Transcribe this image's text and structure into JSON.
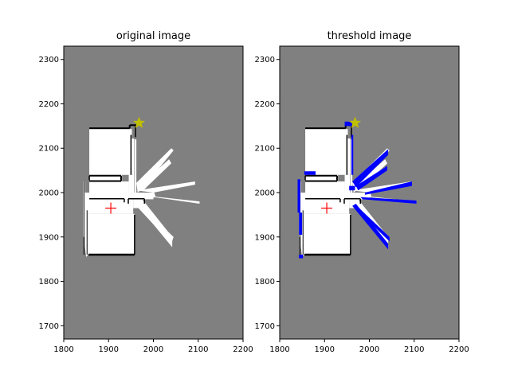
{
  "chart_data": [
    {
      "type": "heatmap",
      "title": "original image",
      "xlim": [
        1800,
        2200
      ],
      "ylim": [
        1670,
        2330
      ],
      "x_ticks": [
        1800,
        1900,
        2000,
        2100,
        2200
      ],
      "y_ticks": [
        1700,
        1800,
        1900,
        2000,
        2100,
        2200,
        2300
      ],
      "grid": false,
      "background_color": "#808080",
      "free_color": "#ffffff",
      "obstacle_color": "#000000",
      "markers": [
        {
          "kind": "star",
          "x": 1968,
          "y": 2157,
          "color": "#bfbf00"
        },
        {
          "kind": "plus",
          "x": 1905,
          "y": 1965,
          "color": "#ff0000"
        }
      ]
    },
    {
      "type": "heatmap",
      "title": "threshold image",
      "xlim": [
        1800,
        2200
      ],
      "ylim": [
        1670,
        2330
      ],
      "x_ticks": [
        1800,
        1900,
        2000,
        2100,
        2200
      ],
      "y_ticks": [
        1700,
        1800,
        1900,
        2000,
        2100,
        2200,
        2300
      ],
      "grid": false,
      "background_color": "#808080",
      "free_color": "#ffffff",
      "obstacle_color": "#000000",
      "highlight_color": "#0000ff",
      "markers": [
        {
          "kind": "star",
          "x": 1968,
          "y": 2157,
          "color": "#bfbf00"
        },
        {
          "kind": "plus",
          "x": 1905,
          "y": 1965,
          "color": "#ff0000"
        }
      ]
    }
  ]
}
